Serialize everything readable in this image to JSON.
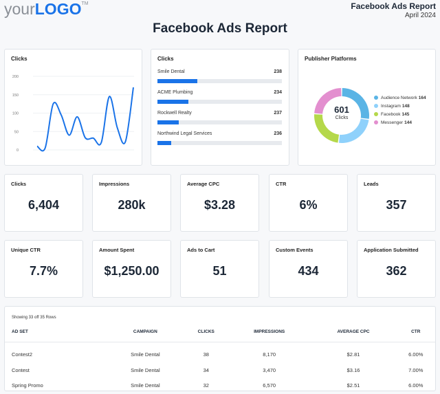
{
  "header": {
    "logo_text": "yourLOGO",
    "logo_prefix": "your",
    "logo_brand": "LOGO",
    "logo_tm": "TM",
    "report_name": "Facebook Ads Report",
    "date": "April 2024",
    "title": "Facebook Ads Report"
  },
  "line_card": {
    "title": "Clicks"
  },
  "chart_data": [
    {
      "type": "line",
      "title": "Clicks",
      "yticks": [
        "200",
        "150",
        "100",
        "50",
        "0"
      ],
      "ylim": [
        0,
        200
      ],
      "grid": true,
      "values": [
        10,
        5,
        125,
        95,
        40,
        90,
        33,
        32,
        20,
        145,
        60,
        22,
        170
      ]
    },
    {
      "type": "bar",
      "title": "Clicks",
      "orientation": "horizontal",
      "categories": [
        "Smile Dental",
        "ACME Plumbing",
        "Rockwell Realty",
        "Northwind Legal Services"
      ],
      "labels": [
        "238",
        "234",
        "237",
        "236"
      ],
      "fill_percent": [
        32,
        25,
        17,
        11
      ]
    },
    {
      "type": "pie",
      "title": "Publisher Platforms",
      "donut": true,
      "center_value": "601",
      "center_label": "Clicks",
      "legend_placement": "right",
      "slices": [
        {
          "name": "Audience Network",
          "value": "164",
          "color": "#5ab4e5"
        },
        {
          "name": "Instagram",
          "value": "148",
          "color": "#8fd1fb"
        },
        {
          "name": "Facebook",
          "value": "145",
          "color": "#b5d84a"
        },
        {
          "name": "Messenger",
          "value": "144",
          "color": "#e38fcf"
        }
      ]
    }
  ],
  "kpis": [
    {
      "label": "Clicks",
      "value": "6,404"
    },
    {
      "label": "Impressions",
      "value": "280k"
    },
    {
      "label": "Average CPC",
      "value": "$3.28"
    },
    {
      "label": "CTR",
      "value": "6%"
    },
    {
      "label": "Leads",
      "value": "357"
    },
    {
      "label": "Unique CTR",
      "value": "7.7%"
    },
    {
      "label": "Amount Spent",
      "value": "$1,250.00"
    },
    {
      "label": "Ads to Cart",
      "value": "51"
    },
    {
      "label": "Custom Events",
      "value": "434"
    },
    {
      "label": "Application Submitted",
      "value": "362"
    }
  ],
  "table": {
    "caption": "Showing 33 off 35 Rows",
    "columns": [
      "AD SET",
      "CAMPAIGN",
      "CLICKS",
      "IMPRESSIONS",
      "AVERAGE CPC",
      "CTR"
    ],
    "rows": [
      [
        "Contest2",
        "Smile Dental",
        "38",
        "8,170",
        "$2.81",
        "6.00%"
      ],
      [
        "Contest",
        "Smile Dental",
        "34",
        "3,470",
        "$3.16",
        "7.00%"
      ],
      [
        "Spring Promo",
        "Smile Dental",
        "32",
        "6,570",
        "$2.51",
        "6.00%"
      ]
    ]
  },
  "colors": {
    "accent": "#1a73e8",
    "text": "#1c2736"
  }
}
